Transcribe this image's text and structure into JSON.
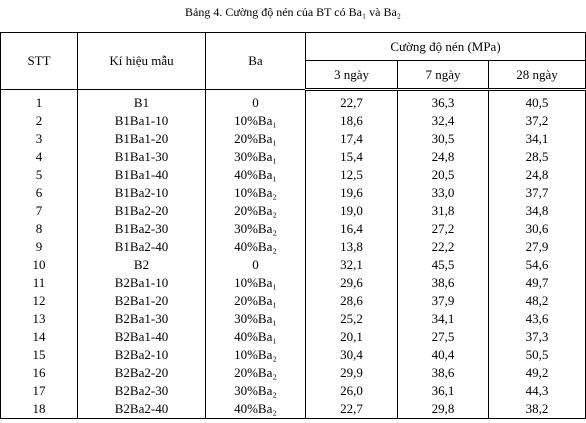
{
  "title": "Bảng 4. Cường độ nén của BT có Ba₁ và Ba₂",
  "table": {
    "headers": [
      "STT",
      "Kí hiệu mẫu",
      "Ba",
      "Cường độ nén (MPa)"
    ],
    "subheaders": [
      "3 ngày",
      "7 ngày",
      "28 ngày"
    ],
    "rows": [
      [
        "1",
        "B1",
        "0",
        "22,7",
        "36,3",
        "40,5"
      ],
      [
        "2",
        "B1Ba1-10",
        "10%Ba₁",
        "18,6",
        "32,4",
        "37,2"
      ],
      [
        "3",
        "B1Ba1-20",
        "20%Ba₁",
        "17,4",
        "30,5",
        "34,1"
      ],
      [
        "4",
        "B1Ba1-30",
        "30%Ba₁",
        "15,4",
        "24,8",
        "28,5"
      ],
      [
        "5",
        "B1Ba1-40",
        "40%Ba₁",
        "12,5",
        "20,5",
        "24,8"
      ],
      [
        "6",
        "B1Ba2-10",
        "10%Ba₂",
        "19,6",
        "33,0",
        "37,7"
      ],
      [
        "7",
        "B1Ba2-20",
        "20%Ba₂",
        "19,0",
        "31,8",
        "34,8"
      ],
      [
        "8",
        "B1Ba2-30",
        "30%Ba₂",
        "16,4",
        "27,2",
        "30,6"
      ],
      [
        "9",
        "B1Ba2-40",
        "40%Ba₂",
        "13,8",
        "22,2",
        "27,9"
      ],
      [
        "10",
        "B2",
        "0",
        "32,1",
        "45,5",
        "54,6"
      ],
      [
        "11",
        "B2Ba1-10",
        "10%Ba₁",
        "29,6",
        "38,6",
        "49,7"
      ],
      [
        "12",
        "B2Ba1-20",
        "20%Ba₁",
        "28,6",
        "37,9",
        "48,2"
      ],
      [
        "13",
        "B2Ba1-30",
        "30%Ba₁",
        "25,2",
        "34,1",
        "43,6"
      ],
      [
        "14",
        "B2Ba1-40",
        "40%Ba₁",
        "20,1",
        "27,5",
        "37,3"
      ],
      [
        "15",
        "B2Ba2-10",
        "10%Ba₂",
        "30,4",
        "40,4",
        "50,5"
      ],
      [
        "16",
        "B2Ba2-20",
        "20%Ba₂",
        "29,9",
        "38,6",
        "49,2"
      ],
      [
        "17",
        "B2Ba2-30",
        "30%Ba₂",
        "26,0",
        "36,1",
        "44,3"
      ],
      [
        "18",
        "B2Ba2-40",
        "40%Ba₂",
        "22,7",
        "29,8",
        "38,2"
      ]
    ]
  }
}
